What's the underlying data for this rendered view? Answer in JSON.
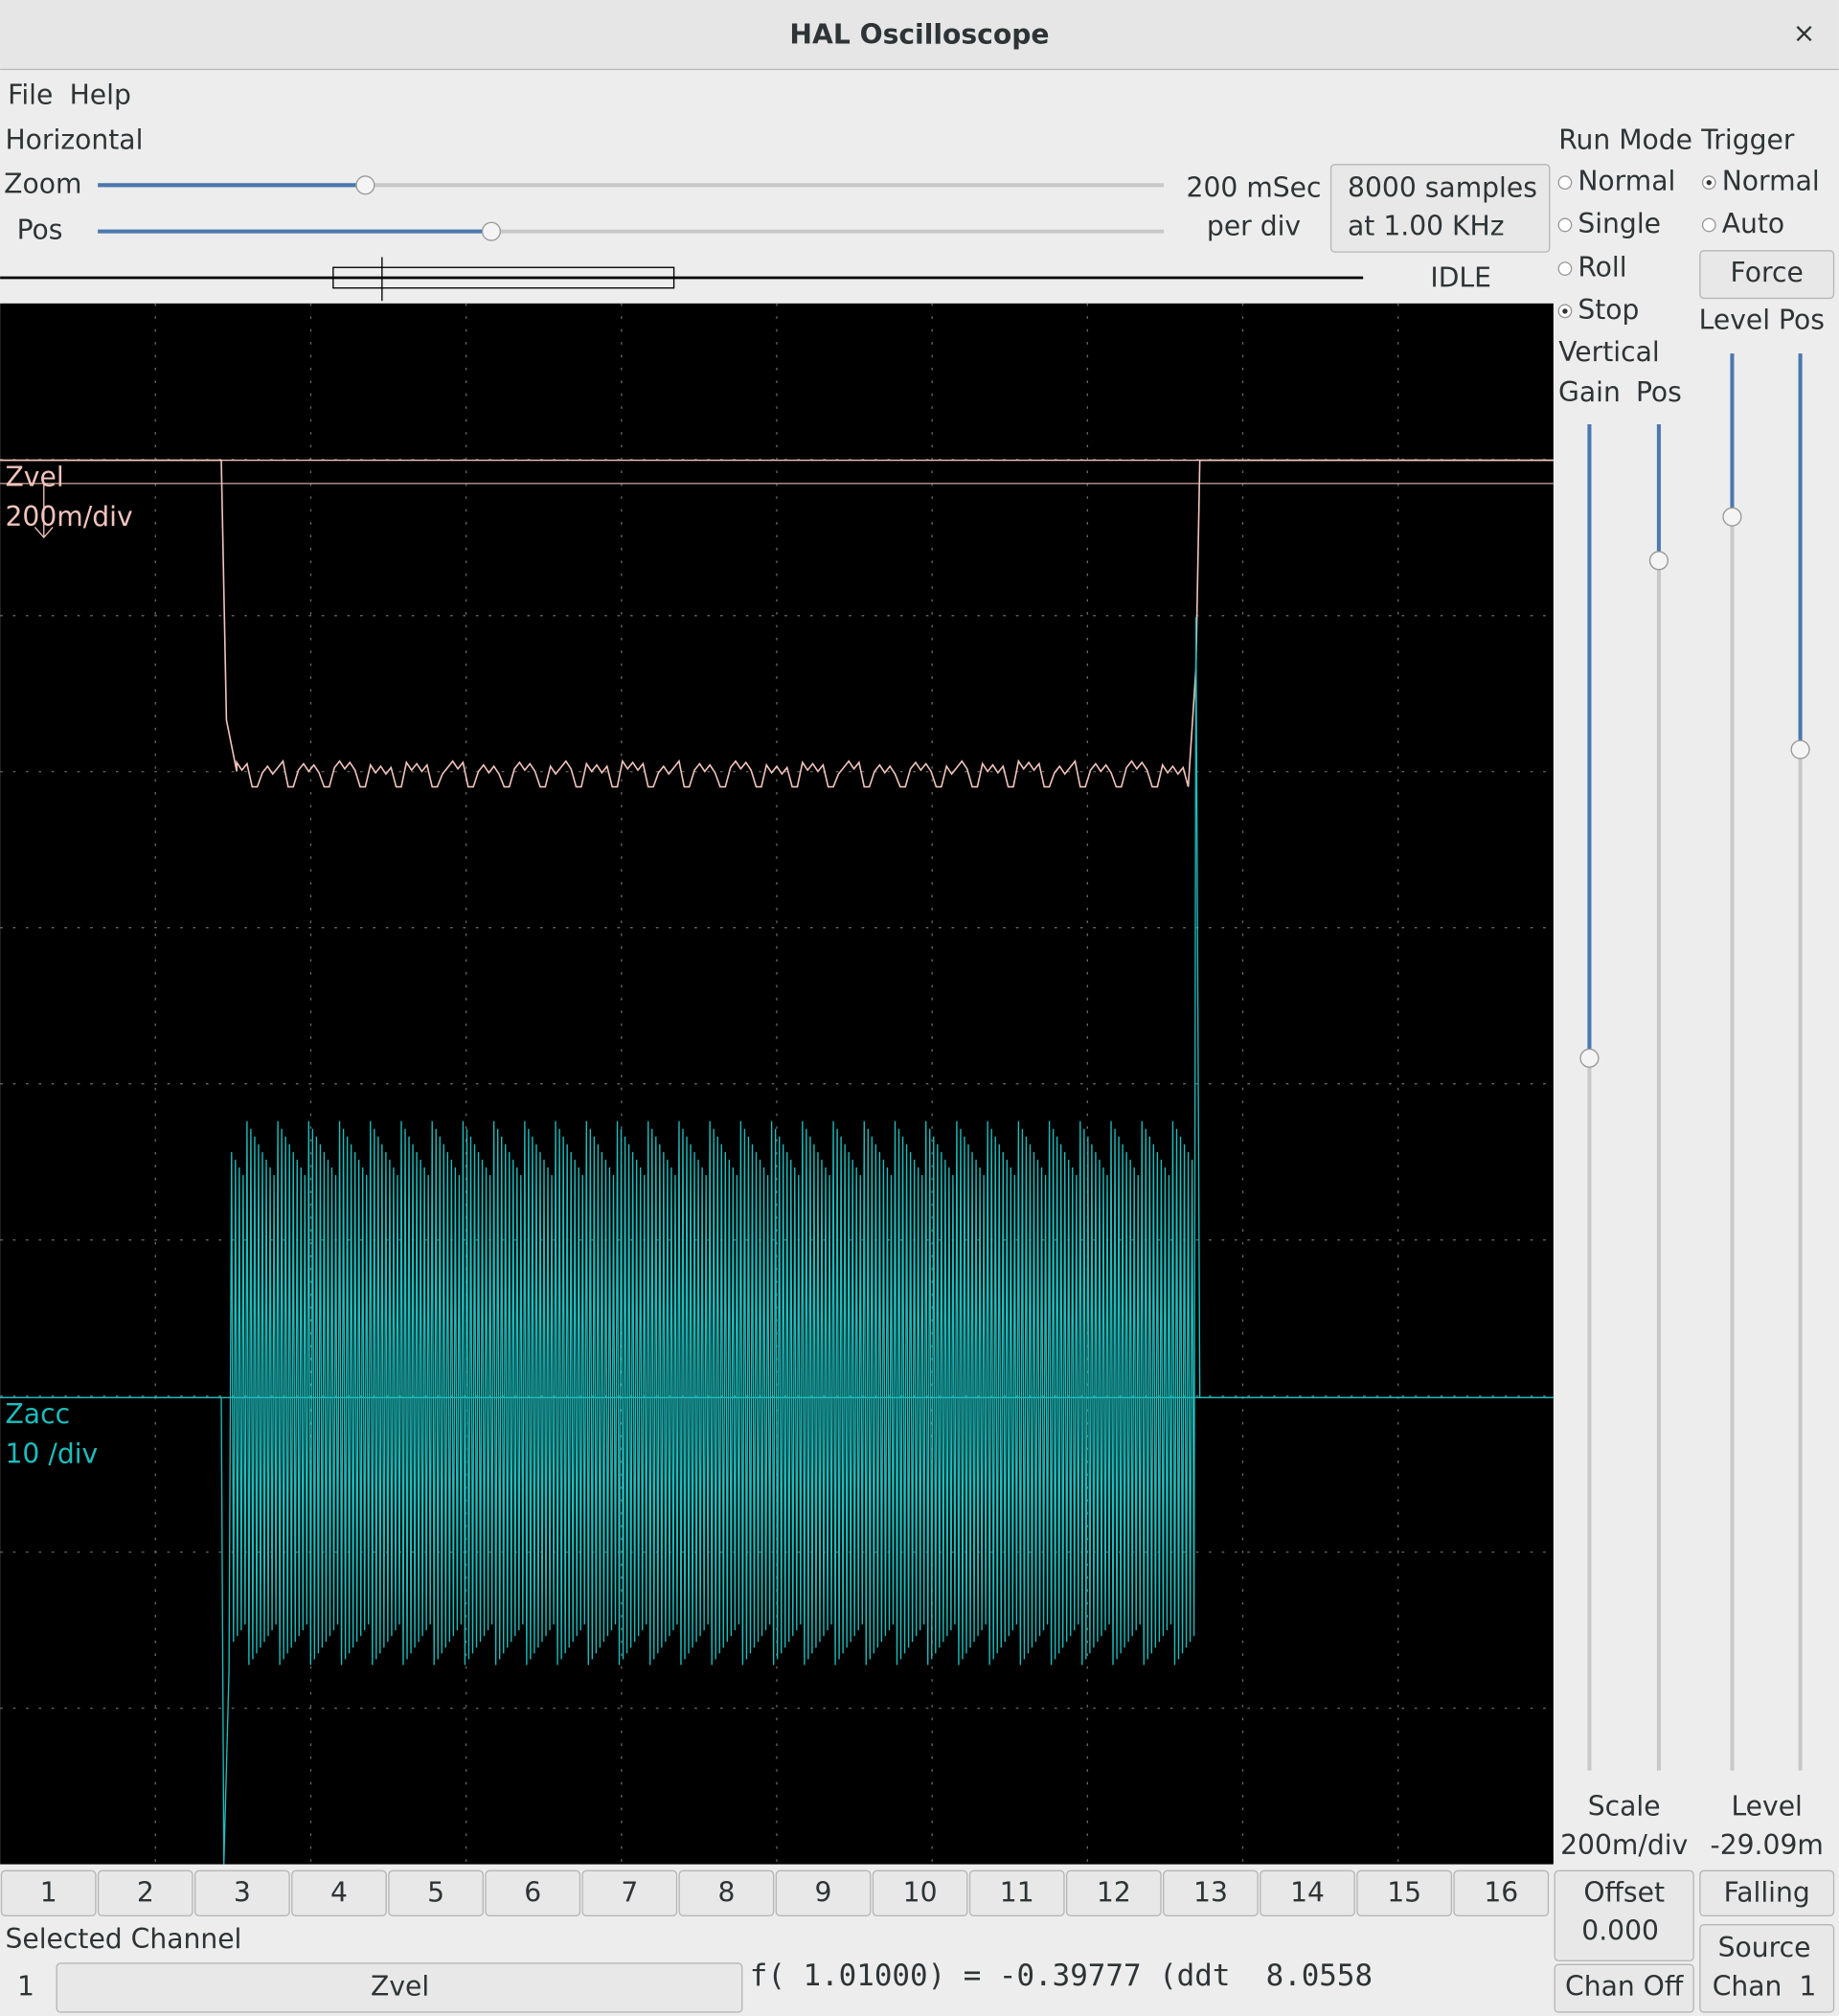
{
  "window": {
    "title": "HAL Oscilloscope",
    "close": "×"
  },
  "menu": [
    "File",
    "Help"
  ],
  "horizontal": {
    "label": "Horizontal",
    "zoom_label": "Zoom",
    "pos_label": "Pos",
    "scale": [
      "200 mSec",
      "per div"
    ],
    "samples": [
      "8000 samples",
      "at 1.00 KHz"
    ],
    "status": "IDLE"
  },
  "run_mode": {
    "label": "Run Mode",
    "options": [
      "Normal",
      "Single",
      "Roll",
      "Stop"
    ]
  },
  "trigger": {
    "label": "Trigger",
    "options": [
      "Normal",
      "Auto"
    ],
    "force": "Force",
    "level_pos": "Level Pos",
    "level_label": "Level",
    "level_value": "-29.09m",
    "edge": "Falling",
    "source": [
      "Source",
      "Chan  1"
    ]
  },
  "vertical": {
    "label": "Vertical",
    "gain": "Gain",
    "pos": "Pos",
    "scale_label": "Scale",
    "scale_value": "200m/div",
    "offset_label": "Offset",
    "offset_value": "0.000",
    "chan_off": "Chan Off"
  },
  "traces": [
    {
      "name": "Zvel",
      "scale": "200m/div"
    },
    {
      "name": "Zacc",
      "scale": "10 /div"
    }
  ],
  "channels": [
    "1",
    "2",
    "3",
    "4",
    "5",
    "6",
    "7",
    "8",
    "9",
    "10",
    "11",
    "12",
    "13",
    "14",
    "15",
    "16"
  ],
  "selected": {
    "label": "Selected Channel",
    "number": "1",
    "name": "Zvel",
    "readout": "f( 1.01000) = -0.39777 (ddt  8.0558"
  }
}
